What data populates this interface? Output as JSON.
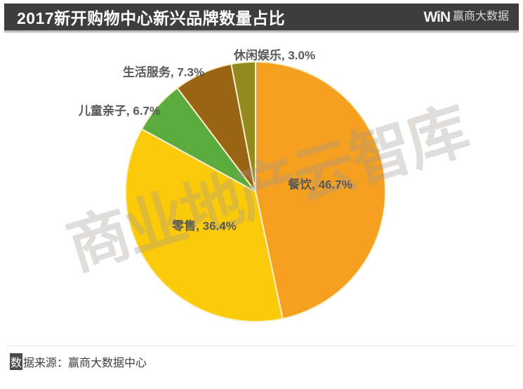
{
  "header": {
    "title": "2017新开购物中心新兴品牌数量占比",
    "logo_win": "WiN",
    "logo_cn": "赢商大数据",
    "bar_color": "#3d3d3d"
  },
  "watermark": {
    "text": "商业地产云智库"
  },
  "source": {
    "prefix_char": "数",
    "rest": "据来源：赢商大数据中心"
  },
  "chart_data": {
    "type": "pie",
    "title": "2017新开购物中心新兴品牌数量占比",
    "legend_position": "none",
    "start_angle_deg": 0,
    "direction": "clockwise",
    "slice_border_color": "#F7F0CC",
    "label_color": "#595959",
    "segments": [
      {
        "label": "餐饮",
        "value": 46.7,
        "display": "餐饮, 46.7%",
        "color": "#F5A01E"
      },
      {
        "label": "零售",
        "value": 36.4,
        "display": "零售, 36.4%",
        "color": "#FBCB09"
      },
      {
        "label": "儿童亲子",
        "value": 6.7,
        "display": "儿童亲子, 6.7%",
        "color": "#5BAB3E"
      },
      {
        "label": "生活服务",
        "value": 7.3,
        "display": "生活服务, 7.3%",
        "color": "#9A6513"
      },
      {
        "label": "休闲娱乐",
        "value": 3.0,
        "display": "休闲娱乐, 3.0%",
        "color": "#93891E"
      }
    ]
  }
}
